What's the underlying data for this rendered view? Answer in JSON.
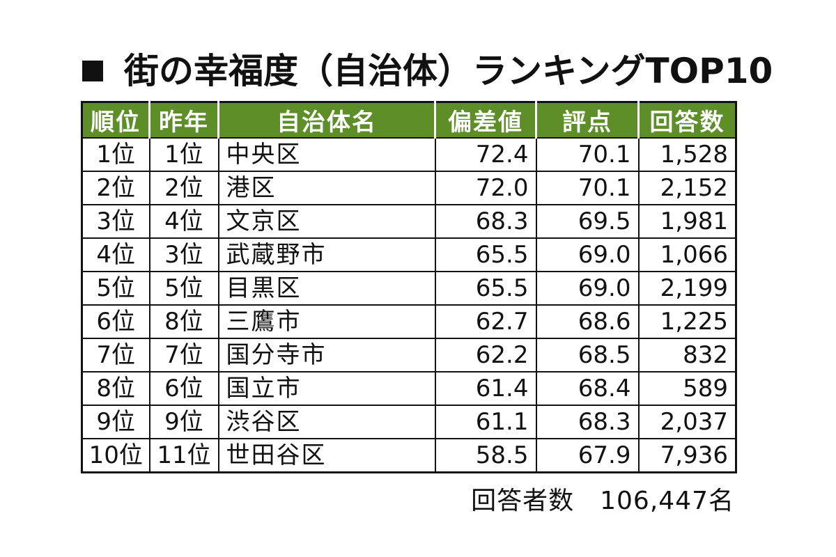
{
  "title": "街の幸福度（自治体）ランキングTOP10",
  "chart_data": {
    "type": "table",
    "title": "街の幸福度（自治体）ランキングTOP10",
    "columns": [
      "順位",
      "昨年",
      "自治体名",
      "偏差値",
      "評点",
      "回答数"
    ],
    "rows": [
      [
        "1位",
        "1位",
        "中央区",
        "72.4",
        "70.1",
        "1,528"
      ],
      [
        "2位",
        "2位",
        "港区",
        "72.0",
        "70.1",
        "2,152"
      ],
      [
        "3位",
        "4位",
        "文京区",
        "68.3",
        "69.5",
        "1,981"
      ],
      [
        "4位",
        "3位",
        "武蔵野市",
        "65.5",
        "69.0",
        "1,066"
      ],
      [
        "5位",
        "5位",
        "目黒区",
        "65.5",
        "69.0",
        "2,199"
      ],
      [
        "6位",
        "8位",
        "三鷹市",
        "62.7",
        "68.6",
        "1,225"
      ],
      [
        "7位",
        "7位",
        "国分寺市",
        "62.2",
        "68.5",
        "832"
      ],
      [
        "8位",
        "6位",
        "国立市",
        "61.4",
        "68.4",
        "589"
      ],
      [
        "9位",
        "9位",
        "渋谷区",
        "61.1",
        "68.3",
        "2,037"
      ],
      [
        "10位",
        "11位",
        "世田谷区",
        "58.5",
        "67.9",
        "7,936"
      ]
    ],
    "header_color": "#5d8e28",
    "header_text_color": "#ffffff",
    "footnote": "回答者数　106,447名"
  }
}
